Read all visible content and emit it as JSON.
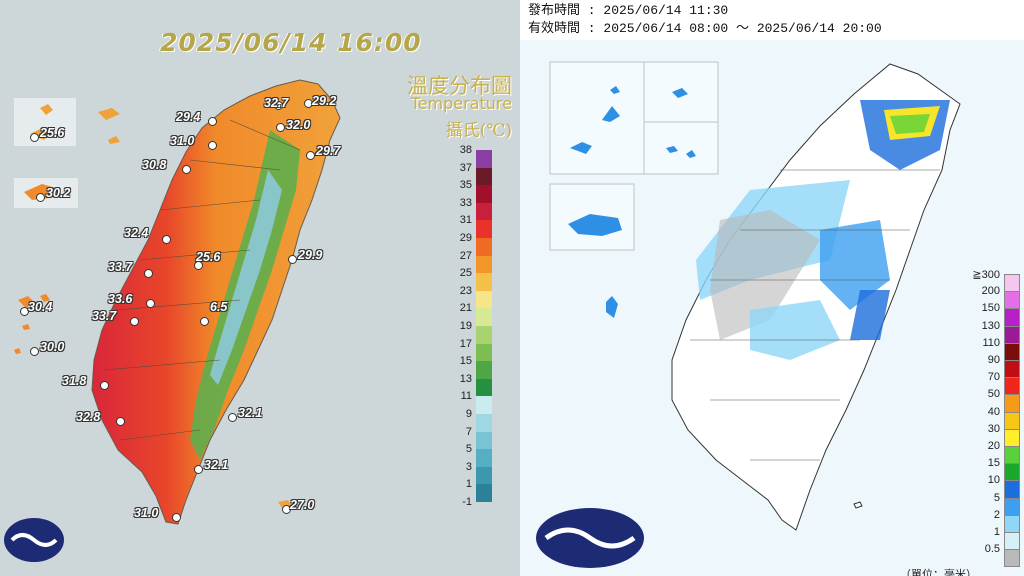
{
  "left_panel": {
    "date": "2025/06/14 16:00",
    "legend_title_zh": "溫度分布圖",
    "legend_title_en": "Temperature",
    "legend_unit": "攝氏(℃)",
    "scale_labels": [
      "38",
      "37",
      "35",
      "33",
      "31",
      "29",
      "27",
      "25",
      "23",
      "21",
      "19",
      "17",
      "15",
      "13",
      "11",
      "9",
      "7",
      "5",
      "3",
      "1",
      "-1"
    ],
    "scale_colors": [
      "#8a3fa4",
      "#6b1a2a",
      "#a0102a",
      "#c81f3a",
      "#e8322a",
      "#ef6a23",
      "#f2962a",
      "#f5c04a",
      "#f7e58a",
      "#d7ea93",
      "#a9d36e",
      "#7cbd54",
      "#4ea646",
      "#249040",
      "#c8ecf0",
      "#9fd7e3",
      "#78c3d4",
      "#55aec2",
      "#3b98ae",
      "#2a8198",
      "#1c6a82"
    ],
    "stations": [
      {
        "name": "29.4",
        "value": "29.4"
      },
      {
        "name": "32.7",
        "value": "32.7"
      },
      {
        "name": "29.2",
        "value": "29.2"
      },
      {
        "name": "32.0",
        "value": "32.0"
      },
      {
        "name": "31.0",
        "value": "31.0"
      },
      {
        "name": "29.7",
        "value": "29.7"
      },
      {
        "name": "30.8",
        "value": "30.8"
      },
      {
        "name": "25.6a",
        "value": "25.6"
      },
      {
        "name": "30.2",
        "value": "30.2"
      },
      {
        "name": "32.4",
        "value": "32.4"
      },
      {
        "name": "25.6b",
        "value": "25.6"
      },
      {
        "name": "29.9",
        "value": "29.9"
      },
      {
        "name": "33.7a",
        "value": "33.7"
      },
      {
        "name": "33.6",
        "value": "33.6"
      },
      {
        "name": "30.4",
        "value": "30.4"
      },
      {
        "name": "33.7b",
        "value": "33.7"
      },
      {
        "name": "6.5",
        "value": "6.5"
      },
      {
        "name": "30.0",
        "value": "30.0"
      },
      {
        "name": "31.8",
        "value": "31.8"
      },
      {
        "name": "32.8",
        "value": "32.8"
      },
      {
        "name": "32.1a",
        "value": "32.1"
      },
      {
        "name": "32.1b",
        "value": "32.1"
      },
      {
        "name": "31.0b",
        "value": "31.0"
      },
      {
        "name": "27.0",
        "value": "27.0"
      }
    ]
  },
  "right_panel": {
    "issue_line": "發布時間 : 2025/06/14 11:30",
    "valid_line": "有效時間 : 2025/06/14 08:00 ～ 2025/06/14 20:00",
    "scale_labels": [
      "≧300",
      "200",
      "150",
      "130",
      "110",
      "90",
      "70",
      "50",
      "40",
      "30",
      "20",
      "15",
      "10",
      "5",
      "2",
      "1",
      "0.5"
    ],
    "scale_colors": [
      "#f5c6f0",
      "#e36ee6",
      "#b91fc8",
      "#9a1b96",
      "#7a0c0c",
      "#c00f14",
      "#f0261a",
      "#f79a18",
      "#f7c718",
      "#ffef2a",
      "#5ad13a",
      "#1aa82c",
      "#1c6edc",
      "#3c9ff0",
      "#8fd6f8",
      "#d4f1f8",
      "#b9b9b9"
    ],
    "unit_note": "（單位：毫米）"
  },
  "colors": {
    "left_bg": "#cdd6d8",
    "right_bg": "#ffffff",
    "logo_bg": "#1d2b74"
  }
}
